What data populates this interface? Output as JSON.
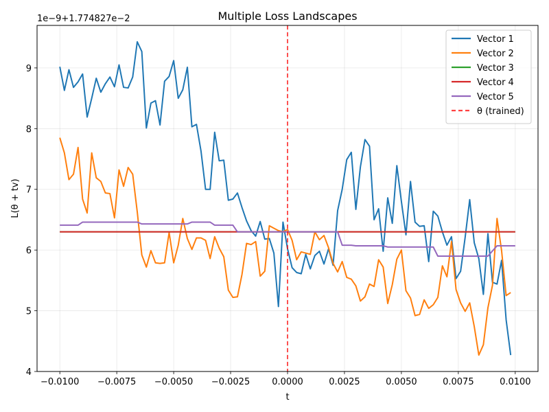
{
  "chart_data": {
    "type": "line",
    "title": "Multiple Loss Landscapes",
    "xlabel": "t",
    "ylabel": "L(θ + tv)",
    "offset_text": "1e−9+1.774827e−2",
    "xlim": [
      -0.011,
      0.011
    ],
    "ylim": [
      4,
      9.7
    ],
    "x_ticks": [
      -0.01,
      -0.0075,
      -0.005,
      -0.0025,
      0,
      0.0025,
      0.005,
      0.0075,
      0.01
    ],
    "x_tick_labels": [
      "−0.0100",
      "−0.0075",
      "−0.0050",
      "−0.0025",
      "0.0000",
      "0.0025",
      "0.0050",
      "0.0075",
      "0.0100"
    ],
    "y_ticks": [
      4,
      5,
      6,
      7,
      8,
      9
    ],
    "y_tick_labels": [
      "4",
      "5",
      "6",
      "7",
      "8",
      "9"
    ],
    "grid": true,
    "legend_position": "top-right",
    "vline": {
      "x": 0,
      "label": "θ (trained)",
      "color": "#ff0000"
    },
    "series": [
      {
        "name": "Vector 1",
        "color": "#1f77b4",
        "points": [
          [
            -0.01,
            9.02
          ],
          [
            -0.0098,
            8.63
          ],
          [
            -0.0096,
            8.97
          ],
          [
            -0.0094,
            8.68
          ],
          [
            -0.0092,
            8.77
          ],
          [
            -0.009,
            8.9
          ],
          [
            -0.0088,
            8.19
          ],
          [
            -0.0086,
            8.5
          ],
          [
            -0.0084,
            8.83
          ],
          [
            -0.0082,
            8.6
          ],
          [
            -0.008,
            8.74
          ],
          [
            -0.0078,
            8.85
          ],
          [
            -0.0076,
            8.69
          ],
          [
            -0.0074,
            9.05
          ],
          [
            -0.0072,
            8.68
          ],
          [
            -0.007,
            8.67
          ],
          [
            -0.0068,
            8.85
          ],
          [
            -0.0066,
            9.43
          ],
          [
            -0.0064,
            9.27
          ],
          [
            -0.0062,
            8.01
          ],
          [
            -0.006,
            8.42
          ],
          [
            -0.0058,
            8.46
          ],
          [
            -0.0056,
            8.06
          ],
          [
            -0.0054,
            8.78
          ],
          [
            -0.0052,
            8.86
          ],
          [
            -0.005,
            9.12
          ],
          [
            -0.0048,
            8.5
          ],
          [
            -0.0046,
            8.64
          ],
          [
            -0.0044,
            9.01
          ],
          [
            -0.0042,
            8.03
          ],
          [
            -0.004,
            8.07
          ],
          [
            -0.0038,
            7.63
          ],
          [
            -0.0036,
            7.0
          ],
          [
            -0.0034,
            7.0
          ],
          [
            -0.0032,
            7.94
          ],
          [
            -0.003,
            7.47
          ],
          [
            -0.0028,
            7.48
          ],
          [
            -0.0026,
            6.82
          ],
          [
            -0.0024,
            6.84
          ],
          [
            -0.0022,
            6.94
          ],
          [
            -0.002,
            6.7
          ],
          [
            -0.0018,
            6.48
          ],
          [
            -0.0016,
            6.32
          ],
          [
            -0.0014,
            6.23
          ],
          [
            -0.0012,
            6.47
          ],
          [
            -0.001,
            6.18
          ],
          [
            -0.0008,
            6.19
          ],
          [
            -0.0006,
            5.95
          ],
          [
            -0.0004,
            5.07
          ],
          [
            -0.0002,
            6.46
          ],
          [
            0.0,
            6.02
          ],
          [
            0.0002,
            5.71
          ],
          [
            0.0004,
            5.63
          ],
          [
            0.0006,
            5.61
          ],
          [
            0.0008,
            5.93
          ],
          [
            0.001,
            5.69
          ],
          [
            0.0012,
            5.91
          ],
          [
            0.0014,
            5.98
          ],
          [
            0.0016,
            5.77
          ],
          [
            0.0018,
            6.02
          ],
          [
            0.002,
            5.75
          ],
          [
            0.0022,
            6.65
          ],
          [
            0.0024,
            7.0
          ],
          [
            0.0026,
            7.49
          ],
          [
            0.0028,
            7.61
          ],
          [
            0.003,
            6.67
          ],
          [
            0.0032,
            7.37
          ],
          [
            0.0034,
            7.82
          ],
          [
            0.0036,
            7.71
          ],
          [
            0.0038,
            6.5
          ],
          [
            0.004,
            6.68
          ],
          [
            0.0042,
            5.98
          ],
          [
            0.0044,
            6.86
          ],
          [
            0.0046,
            6.44
          ],
          [
            0.0048,
            7.39
          ],
          [
            0.005,
            6.8
          ],
          [
            0.0052,
            6.25
          ],
          [
            0.0054,
            7.13
          ],
          [
            0.0056,
            6.46
          ],
          [
            0.0058,
            6.39
          ],
          [
            0.006,
            6.4
          ],
          [
            0.0062,
            5.81
          ],
          [
            0.0064,
            6.64
          ],
          [
            0.0066,
            6.56
          ],
          [
            0.0068,
            6.3
          ],
          [
            0.007,
            6.08
          ],
          [
            0.0072,
            6.22
          ],
          [
            0.0074,
            5.53
          ],
          [
            0.0076,
            5.65
          ],
          [
            0.0078,
            6.21
          ],
          [
            0.008,
            6.83
          ],
          [
            0.0082,
            6.12
          ],
          [
            0.0084,
            5.86
          ],
          [
            0.0086,
            5.27
          ],
          [
            0.0088,
            6.27
          ],
          [
            0.009,
            5.47
          ],
          [
            0.0092,
            5.44
          ],
          [
            0.0094,
            5.83
          ],
          [
            0.0096,
            4.85
          ],
          [
            0.0098,
            4.27
          ]
        ]
      },
      {
        "name": "Vector 2",
        "color": "#ff7f0e",
        "points": [
          [
            -0.01,
            7.85
          ],
          [
            -0.0098,
            7.6
          ],
          [
            -0.0096,
            7.16
          ],
          [
            -0.0094,
            7.25
          ],
          [
            -0.0092,
            7.69
          ],
          [
            -0.009,
            6.84
          ],
          [
            -0.0088,
            6.61
          ],
          [
            -0.0086,
            7.6
          ],
          [
            -0.0084,
            7.19
          ],
          [
            -0.0082,
            7.13
          ],
          [
            -0.008,
            6.94
          ],
          [
            -0.0078,
            6.93
          ],
          [
            -0.0076,
            6.53
          ],
          [
            -0.0074,
            7.32
          ],
          [
            -0.0072,
            7.05
          ],
          [
            -0.007,
            7.36
          ],
          [
            -0.0068,
            7.25
          ],
          [
            -0.0066,
            6.63
          ],
          [
            -0.0064,
            5.92
          ],
          [
            -0.0062,
            5.72
          ],
          [
            -0.006,
            5.99
          ],
          [
            -0.0058,
            5.79
          ],
          [
            -0.0056,
            5.78
          ],
          [
            -0.0054,
            5.79
          ],
          [
            -0.0052,
            6.29
          ],
          [
            -0.005,
            5.79
          ],
          [
            -0.0048,
            6.08
          ],
          [
            -0.0046,
            6.52
          ],
          [
            -0.0044,
            6.19
          ],
          [
            -0.0042,
            6.01
          ],
          [
            -0.004,
            6.2
          ],
          [
            -0.0038,
            6.2
          ],
          [
            -0.0036,
            6.16
          ],
          [
            -0.0034,
            5.86
          ],
          [
            -0.0032,
            6.22
          ],
          [
            -0.003,
            6.03
          ],
          [
            -0.0028,
            5.89
          ],
          [
            -0.0026,
            5.34
          ],
          [
            -0.0024,
            5.22
          ],
          [
            -0.0022,
            5.23
          ],
          [
            -0.002,
            5.6
          ],
          [
            -0.0018,
            6.11
          ],
          [
            -0.0016,
            6.09
          ],
          [
            -0.0014,
            6.14
          ],
          [
            -0.0012,
            5.57
          ],
          [
            -0.001,
            5.65
          ],
          [
            -0.0008,
            6.4
          ],
          [
            -0.0006,
            6.36
          ],
          [
            -0.0004,
            6.32
          ],
          [
            -0.0002,
            6.3
          ],
          [
            0.0,
            6.34
          ],
          [
            0.0002,
            6.16
          ],
          [
            0.0004,
            5.84
          ],
          [
            0.0006,
            5.97
          ],
          [
            0.0008,
            5.95
          ],
          [
            0.001,
            5.93
          ],
          [
            0.0012,
            6.3
          ],
          [
            0.0014,
            6.17
          ],
          [
            0.0016,
            6.24
          ],
          [
            0.0018,
            6.04
          ],
          [
            0.002,
            5.78
          ],
          [
            0.0022,
            5.64
          ],
          [
            0.0024,
            5.81
          ],
          [
            0.0026,
            5.55
          ],
          [
            0.0028,
            5.52
          ],
          [
            0.003,
            5.41
          ],
          [
            0.0032,
            5.16
          ],
          [
            0.0034,
            5.23
          ],
          [
            0.0036,
            5.44
          ],
          [
            0.0038,
            5.4
          ],
          [
            0.004,
            5.84
          ],
          [
            0.0042,
            5.72
          ],
          [
            0.0044,
            5.12
          ],
          [
            0.0046,
            5.43
          ],
          [
            0.0048,
            5.85
          ],
          [
            0.005,
            6.0
          ],
          [
            0.0052,
            5.33
          ],
          [
            0.0054,
            5.21
          ],
          [
            0.0056,
            4.92
          ],
          [
            0.0058,
            4.94
          ],
          [
            0.006,
            5.18
          ],
          [
            0.0062,
            5.04
          ],
          [
            0.0064,
            5.1
          ],
          [
            0.0066,
            5.22
          ],
          [
            0.0068,
            5.74
          ],
          [
            0.007,
            5.56
          ],
          [
            0.0072,
            6.14
          ],
          [
            0.0074,
            5.35
          ],
          [
            0.0076,
            5.13
          ],
          [
            0.0078,
            4.99
          ],
          [
            0.008,
            5.13
          ],
          [
            0.0082,
            4.74
          ],
          [
            0.0084,
            4.27
          ],
          [
            0.0086,
            4.44
          ],
          [
            0.0088,
            5.05
          ],
          [
            0.009,
            5.42
          ],
          [
            0.0092,
            6.52
          ],
          [
            0.0094,
            5.99
          ],
          [
            0.0096,
            5.25
          ],
          [
            0.0098,
            5.3
          ]
        ]
      },
      {
        "name": "Vector 3",
        "color": "#2ca02c",
        "points": [
          [
            -0.01,
            6.3
          ],
          [
            0.0,
            6.3
          ],
          [
            0.01,
            6.3
          ]
        ]
      },
      {
        "name": "Vector 4",
        "color": "#d62728",
        "points": [
          [
            -0.01,
            6.3
          ],
          [
            0.0,
            6.3
          ],
          [
            0.01,
            6.3
          ]
        ]
      },
      {
        "name": "Vector 5",
        "color": "#9467bd",
        "points": [
          [
            -0.01,
            6.41
          ],
          [
            -0.0092,
            6.41
          ],
          [
            -0.009,
            6.46
          ],
          [
            -0.0066,
            6.46
          ],
          [
            -0.0064,
            6.43
          ],
          [
            -0.0044,
            6.43
          ],
          [
            -0.0042,
            6.46
          ],
          [
            -0.0034,
            6.46
          ],
          [
            -0.0032,
            6.41
          ],
          [
            -0.0024,
            6.41
          ],
          [
            -0.0022,
            6.3
          ],
          [
            0.0022,
            6.3
          ],
          [
            0.0024,
            6.08
          ],
          [
            0.0028,
            6.08
          ],
          [
            0.003,
            6.07
          ],
          [
            0.0042,
            6.07
          ],
          [
            0.0044,
            6.05
          ],
          [
            0.0064,
            6.05
          ],
          [
            0.0066,
            5.9
          ],
          [
            0.0088,
            5.9
          ],
          [
            0.0092,
            6.07
          ],
          [
            0.01,
            6.07
          ]
        ]
      }
    ]
  }
}
